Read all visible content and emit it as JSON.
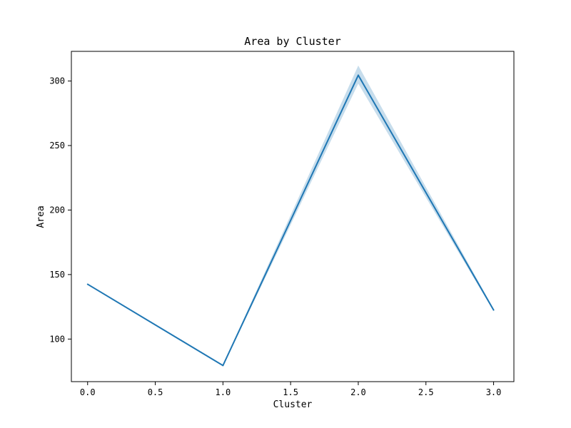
{
  "chart_data": {
    "type": "line",
    "title": "Area by Cluster",
    "xlabel": "Cluster",
    "ylabel": "Area",
    "xlim": [
      -0.12,
      3.15
    ],
    "ylim": [
      67,
      323
    ],
    "x_ticks": [
      0.0,
      0.5,
      1.0,
      1.5,
      2.0,
      2.5,
      3.0
    ],
    "x_tick_labels": [
      "0.0",
      "0.5",
      "1.0",
      "1.5",
      "2.0",
      "2.5",
      "3.0"
    ],
    "y_ticks": [
      100,
      150,
      200,
      250,
      300
    ],
    "y_tick_labels": [
      "100",
      "150",
      "200",
      "250",
      "300"
    ],
    "grid": false,
    "line_color": "#1f77b4",
    "band_color": "#1f77b4",
    "series": [
      {
        "x": [
          0,
          1,
          2,
          3
        ],
        "y": [
          142.5,
          79.5,
          304.5,
          122.5
        ],
        "ci_low": [
          142,
          79,
          298,
          121.5
        ],
        "ci_high": [
          143,
          80,
          312,
          123.5
        ]
      }
    ]
  }
}
